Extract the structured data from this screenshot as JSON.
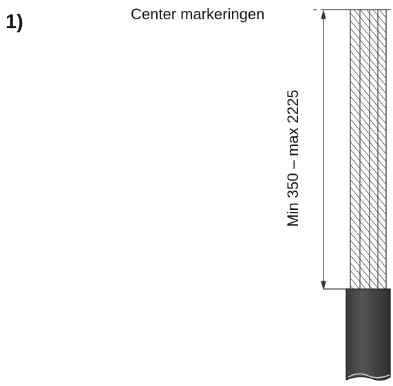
{
  "step_number": "1)",
  "center_marking_label": "Center markeringen",
  "dimension_label": "Min 350 – max 2225",
  "colors": {
    "line": "#333333",
    "cable_jacket": "#4a4a4a",
    "background": "#ffffff"
  },
  "icons": [
    "stripped-wire-strands",
    "cable-jacket",
    "dimension-arrow"
  ]
}
